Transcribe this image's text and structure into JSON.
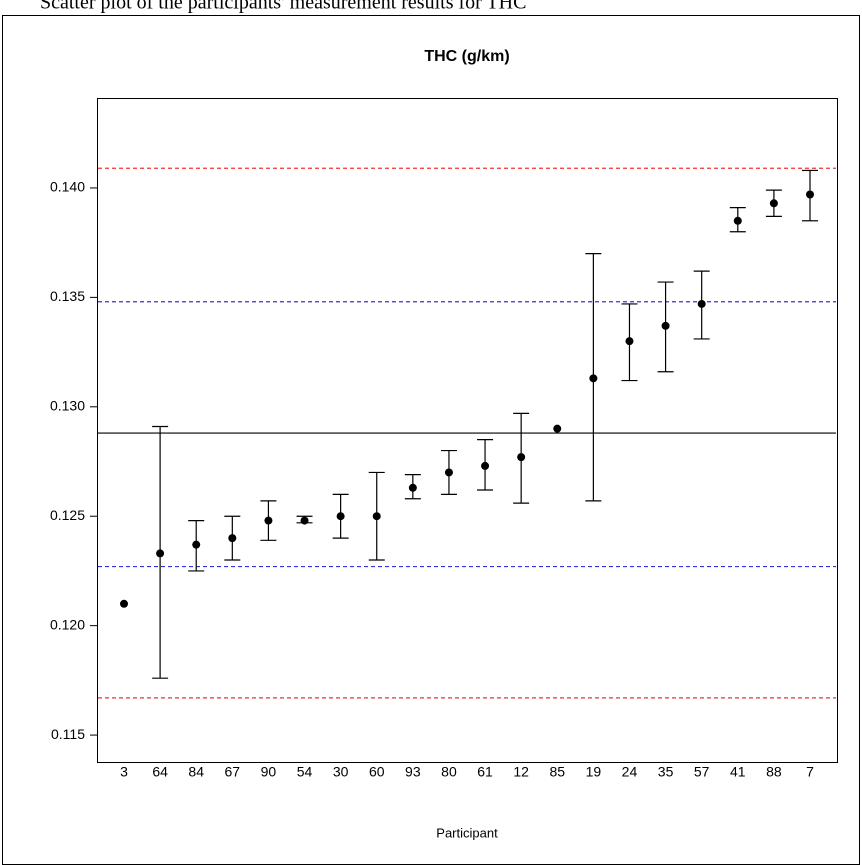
{
  "caption": "Scatter plot of the participants' measurement results for THC",
  "chart_data": {
    "type": "errorbar",
    "title": "THC (g/km)",
    "x_label": "Participant",
    "categories": [
      "3",
      "64",
      "84",
      "67",
      "90",
      "54",
      "30",
      "60",
      "93",
      "80",
      "61",
      "12",
      "85",
      "19",
      "24",
      "35",
      "57",
      "41",
      "88",
      "7"
    ],
    "values": [
      0.121,
      0.1233,
      0.1237,
      0.124,
      0.1248,
      0.1248,
      0.125,
      0.125,
      0.1263,
      0.127,
      0.1273,
      0.1277,
      0.129,
      0.1313,
      0.133,
      0.1337,
      0.1347,
      0.1385,
      0.1393,
      0.1397
    ],
    "lower": [
      null,
      0.1176,
      0.1225,
      0.123,
      0.1239,
      0.1247,
      0.124,
      0.123,
      0.1258,
      0.126,
      0.1262,
      0.1256,
      null,
      0.1257,
      0.1312,
      0.1316,
      0.1331,
      0.138,
      0.1387,
      0.1385
    ],
    "upper": [
      null,
      0.1291,
      0.1248,
      0.125,
      0.1257,
      0.125,
      0.126,
      0.127,
      0.1269,
      0.128,
      0.1285,
      0.1297,
      null,
      0.137,
      0.1347,
      0.1357,
      0.1362,
      0.1391,
      0.1399,
      0.1408
    ],
    "color": "#000000",
    "hlines": [
      {
        "value": 0.1288,
        "color": "#000000",
        "dashed": false
      },
      {
        "value": 0.1348,
        "color": "#3333dd",
        "dashed": true
      },
      {
        "value": 0.1227,
        "color": "#3333dd",
        "dashed": true
      },
      {
        "value": 0.1409,
        "color": "#ee3333",
        "dashed": true
      },
      {
        "value": 0.1167,
        "color": "#ee3333",
        "dashed": true
      }
    ],
    "ylim": [
      0.11377,
      0.14411
    ],
    "yticks": [
      0.115,
      {
        "value": 0.12,
        "label": "0.120"
      },
      0.125,
      {
        "value": 0.13,
        "label": "0.130"
      },
      0.135,
      {
        "value": 0.14,
        "label": "0.140"
      }
    ],
    "grid": false
  }
}
